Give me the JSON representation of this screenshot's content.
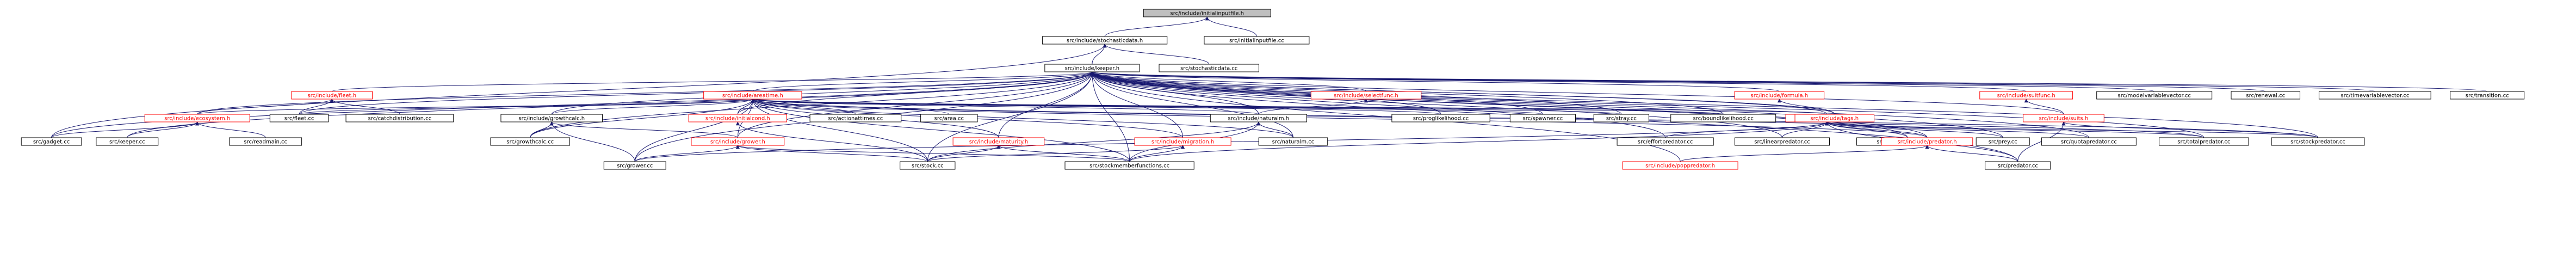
{
  "colors": {
    "edge": "#191970",
    "text_black": "#000000",
    "text_red": "#ff0000",
    "border_black": "#000000",
    "border_red": "#ff0000",
    "fill_root": "#bfbfbf",
    "fill_default": "#ffffff"
  },
  "nodes": [
    {
      "id": "root",
      "label": "src/include/initialinputfile.h",
      "style": "root"
    },
    {
      "id": "stochasticdata_h",
      "label": "src/include/stochasticdata.h",
      "style": "normal"
    },
    {
      "id": "initialinputfile_cc",
      "label": "src/initialinputfile.cc",
      "style": "normal"
    },
    {
      "id": "keeper_h",
      "label": "src/include/keeper.h",
      "style": "normal"
    },
    {
      "id": "stochasticdata_cc",
      "label": "src/stochasticdata.cc",
      "style": "normal"
    },
    {
      "id": "fleet_h",
      "label": "src/include/fleet.h",
      "style": "red"
    },
    {
      "id": "areatime_h",
      "label": "src/include/areatime.h",
      "style": "red"
    },
    {
      "id": "selectfunc_h",
      "label": "src/include/selectfunc.h",
      "style": "red"
    },
    {
      "id": "formula_h",
      "label": "src/include/formula.h",
      "style": "red"
    },
    {
      "id": "suitfunc_h",
      "label": "src/include/suitfunc.h",
      "style": "red"
    },
    {
      "id": "modelvariablevector_cc",
      "label": "src/modelvariablevector.cc",
      "style": "normal"
    },
    {
      "id": "renewal_cc",
      "label": "src/renewal.cc",
      "style": "normal"
    },
    {
      "id": "timevariablevector_cc",
      "label": "src/timevariablevector.cc",
      "style": "normal"
    },
    {
      "id": "transition_cc",
      "label": "src/transition.cc",
      "style": "normal"
    },
    {
      "id": "ecosystem_h",
      "label": "src/include/ecosystem.h",
      "style": "red"
    },
    {
      "id": "fleet_cc",
      "label": "src/fleet.cc",
      "style": "normal"
    },
    {
      "id": "catchdistribution_cc",
      "label": "src/catchdistribution.cc",
      "style": "normal"
    },
    {
      "id": "growthcalc_h",
      "label": "src/include/growthcalc.h",
      "style": "normal"
    },
    {
      "id": "initialcond_h",
      "label": "src/include/initialcond.h",
      "style": "red"
    },
    {
      "id": "actionattimes_cc",
      "label": "src/actionattimes.cc",
      "style": "normal"
    },
    {
      "id": "area_cc",
      "label": "src/area.cc",
      "style": "normal"
    },
    {
      "id": "naturalm_h",
      "label": "src/include/naturalm.h",
      "style": "normal"
    },
    {
      "id": "proglikelihood_cc",
      "label": "src/proglikelihood.cc",
      "style": "normal"
    },
    {
      "id": "spawner_cc",
      "label": "src/spawner.cc",
      "style": "normal"
    },
    {
      "id": "stray_cc",
      "label": "src/stray.cc",
      "style": "normal"
    },
    {
      "id": "boundlikelihood_cc",
      "label": "src/boundlikelihood.cc",
      "style": "normal"
    },
    {
      "id": "prey_h",
      "label": "src/include/prey.h",
      "style": "red"
    },
    {
      "id": "tags_h",
      "label": "src/include/tags.h",
      "style": "red"
    },
    {
      "id": "suits_h",
      "label": "src/include/suits.h",
      "style": "red"
    },
    {
      "id": "gadget_cc",
      "label": "src/gadget.cc",
      "style": "normal"
    },
    {
      "id": "keeper_cc",
      "label": "src/keeper.cc",
      "style": "normal"
    },
    {
      "id": "readmain_cc",
      "label": "src/readmain.cc",
      "style": "normal"
    },
    {
      "id": "growthcalc_cc",
      "label": "src/growthcalc.cc",
      "style": "normal"
    },
    {
      "id": "grower_h",
      "label": "src/include/grower.h",
      "style": "red"
    },
    {
      "id": "maturity_h",
      "label": "src/include/maturity.h",
      "style": "red"
    },
    {
      "id": "migration_h",
      "label": "src/include/migration.h",
      "style": "red"
    },
    {
      "id": "naturalm_cc",
      "label": "src/naturalm.cc",
      "style": "normal"
    },
    {
      "id": "effortpredator_cc",
      "label": "src/effortpredator.cc",
      "style": "normal"
    },
    {
      "id": "linearpredator_cc",
      "label": "src/linearpredator.cc",
      "style": "normal"
    },
    {
      "id": "numberpredator_cc",
      "label": "src/numberpredator.cc",
      "style": "normal"
    },
    {
      "id": "predator_h",
      "label": "src/include/predator.h",
      "style": "red"
    },
    {
      "id": "prey_cc",
      "label": "src/prey.cc",
      "style": "normal"
    },
    {
      "id": "quotapredator_cc",
      "label": "src/quotapredator.cc",
      "style": "normal"
    },
    {
      "id": "totalpredator_cc",
      "label": "src/totalpredator.cc",
      "style": "normal"
    },
    {
      "id": "stockpredator_cc",
      "label": "src/stockpredator.cc",
      "style": "normal"
    },
    {
      "id": "grower_cc",
      "label": "src/grower.cc",
      "style": "normal"
    },
    {
      "id": "stock_cc",
      "label": "src/stock.cc",
      "style": "normal"
    },
    {
      "id": "stockmemberfunctions_cc",
      "label": "src/stockmemberfunctions.cc",
      "style": "normal"
    },
    {
      "id": "poppredator_h",
      "label": "src/include/poppredator.h",
      "style": "red"
    },
    {
      "id": "predator_cc",
      "label": "src/predator.cc",
      "style": "normal"
    }
  ],
  "edges": [
    [
      "stochasticdata_h",
      "root"
    ],
    [
      "initialinputfile_cc",
      "root"
    ],
    [
      "keeper_h",
      "stochasticdata_h"
    ],
    [
      "stochasticdata_cc",
      "stochasticdata_h"
    ],
    [
      "gadget_cc",
      "stochasticdata_h"
    ],
    [
      "fleet_h",
      "keeper_h"
    ],
    [
      "areatime_h",
      "keeper_h"
    ],
    [
      "selectfunc_h",
      "keeper_h"
    ],
    [
      "formula_h",
      "keeper_h"
    ],
    [
      "suitfunc_h",
      "keeper_h"
    ],
    [
      "modelvariablevector_cc",
      "keeper_h"
    ],
    [
      "renewal_cc",
      "keeper_h"
    ],
    [
      "timevariablevector_cc",
      "keeper_h"
    ],
    [
      "transition_cc",
      "keeper_h"
    ],
    [
      "ecosystem_h",
      "keeper_h"
    ],
    [
      "fleet_cc",
      "keeper_h"
    ],
    [
      "growthcalc_h",
      "keeper_h"
    ],
    [
      "initialcond_h",
      "keeper_h"
    ],
    [
      "naturalm_h",
      "keeper_h"
    ],
    [
      "proglikelihood_cc",
      "keeper_h"
    ],
    [
      "spawner_cc",
      "keeper_h"
    ],
    [
      "stray_cc",
      "keeper_h"
    ],
    [
      "boundlikelihood_cc",
      "keeper_h"
    ],
    [
      "prey_h",
      "keeper_h"
    ],
    [
      "tags_h",
      "keeper_h"
    ],
    [
      "suits_h",
      "keeper_h"
    ],
    [
      "keeper_cc",
      "keeper_h"
    ],
    [
      "gadget_cc",
      "keeper_h"
    ],
    [
      "grower_h",
      "keeper_h"
    ],
    [
      "maturity_h",
      "keeper_h"
    ],
    [
      "migration_h",
      "keeper_h"
    ],
    [
      "predator_h",
      "keeper_h"
    ],
    [
      "grower_cc",
      "keeper_h"
    ],
    [
      "stock_cc",
      "keeper_h"
    ],
    [
      "stockmemberfunctions_cc",
      "keeper_h"
    ],
    [
      "poppredator_h",
      "keeper_h"
    ],
    [
      "predator_cc",
      "keeper_h"
    ],
    [
      "stockpredator_cc",
      "keeper_h"
    ],
    [
      "totalpredator_cc",
      "keeper_h"
    ],
    [
      "effortpredator_cc",
      "keeper_h"
    ],
    [
      "linearpredator_cc",
      "keeper_h"
    ],
    [
      "numberpredator_cc",
      "keeper_h"
    ],
    [
      "quotapredator_cc",
      "keeper_h"
    ],
    [
      "prey_cc",
      "keeper_h"
    ],
    [
      "naturalm_cc",
      "keeper_h"
    ],
    [
      "growthcalc_cc",
      "keeper_h"
    ],
    [
      "ecosystem_h",
      "fleet_h"
    ],
    [
      "fleet_cc",
      "fleet_h"
    ],
    [
      "catchdistribution_cc",
      "fleet_h"
    ],
    [
      "ecosystem_h",
      "areatime_h"
    ],
    [
      "fleet_cc",
      "areatime_h"
    ],
    [
      "growthcalc_h",
      "areatime_h"
    ],
    [
      "initialcond_h",
      "areatime_h"
    ],
    [
      "actionattimes_cc",
      "areatime_h"
    ],
    [
      "area_cc",
      "areatime_h"
    ],
    [
      "naturalm_h",
      "areatime_h"
    ],
    [
      "proglikelihood_cc",
      "areatime_h"
    ],
    [
      "spawner_cc",
      "areatime_h"
    ],
    [
      "stray_cc",
      "areatime_h"
    ],
    [
      "boundlikelihood_cc",
      "areatime_h"
    ],
    [
      "prey_h",
      "areatime_h"
    ],
    [
      "grower_h",
      "areatime_h"
    ],
    [
      "maturity_h",
      "areatime_h"
    ],
    [
      "migration_h",
      "areatime_h"
    ],
    [
      "stock_cc",
      "areatime_h"
    ],
    [
      "stockmemberfunctions_cc",
      "areatime_h"
    ],
    [
      "naturalm_cc",
      "areatime_h"
    ],
    [
      "predator_h",
      "areatime_h"
    ],
    [
      "stockpredator_cc",
      "areatime_h"
    ],
    [
      "totalpredator_cc",
      "areatime_h"
    ],
    [
      "grower_cc",
      "areatime_h"
    ],
    [
      "growthcalc_cc",
      "areatime_h"
    ],
    [
      "naturalm_h",
      "selectfunc_h"
    ],
    [
      "tags_h",
      "formula_h"
    ],
    [
      "suits_h",
      "suitfunc_h"
    ],
    [
      "gadget_cc",
      "ecosystem_h"
    ],
    [
      "keeper_cc",
      "ecosystem_h"
    ],
    [
      "readmain_cc",
      "ecosystem_h"
    ],
    [
      "growthcalc_cc",
      "growthcalc_h"
    ],
    [
      "grower_h",
      "growthcalc_h"
    ],
    [
      "grower_cc",
      "growthcalc_h"
    ],
    [
      "stock_cc",
      "initialcond_h"
    ],
    [
      "naturalm_cc",
      "naturalm_h"
    ],
    [
      "stock_cc",
      "naturalm_h"
    ],
    [
      "stockmemberfunctions_cc",
      "naturalm_h"
    ],
    [
      "effortpredator_cc",
      "prey_h"
    ],
    [
      "linearpredator_cc",
      "prey_h"
    ],
    [
      "numberpredator_cc",
      "prey_h"
    ],
    [
      "predator_h",
      "prey_h"
    ],
    [
      "prey_cc",
      "prey_h"
    ],
    [
      "quotapredator_cc",
      "prey_h"
    ],
    [
      "totalpredator_cc",
      "prey_h"
    ],
    [
      "stockpredator_cc",
      "prey_h"
    ],
    [
      "predator_cc",
      "prey_h"
    ],
    [
      "stockmemberfunctions_cc",
      "prey_h"
    ],
    [
      "grower_cc",
      "prey_h"
    ],
    [
      "predator_cc",
      "suits_h"
    ],
    [
      "stockpredator_cc",
      "suits_h"
    ],
    [
      "grower_cc",
      "grower_h"
    ],
    [
      "stock_cc",
      "grower_h"
    ],
    [
      "stockmemberfunctions_cc",
      "grower_h"
    ],
    [
      "stock_cc",
      "maturity_h"
    ],
    [
      "stockmemberfunctions_cc",
      "maturity_h"
    ],
    [
      "stock_cc",
      "migration_h"
    ],
    [
      "stockmemberfunctions_cc",
      "migration_h"
    ],
    [
      "poppredator_h",
      "predator_h"
    ],
    [
      "predator_cc",
      "predator_h"
    ]
  ]
}
